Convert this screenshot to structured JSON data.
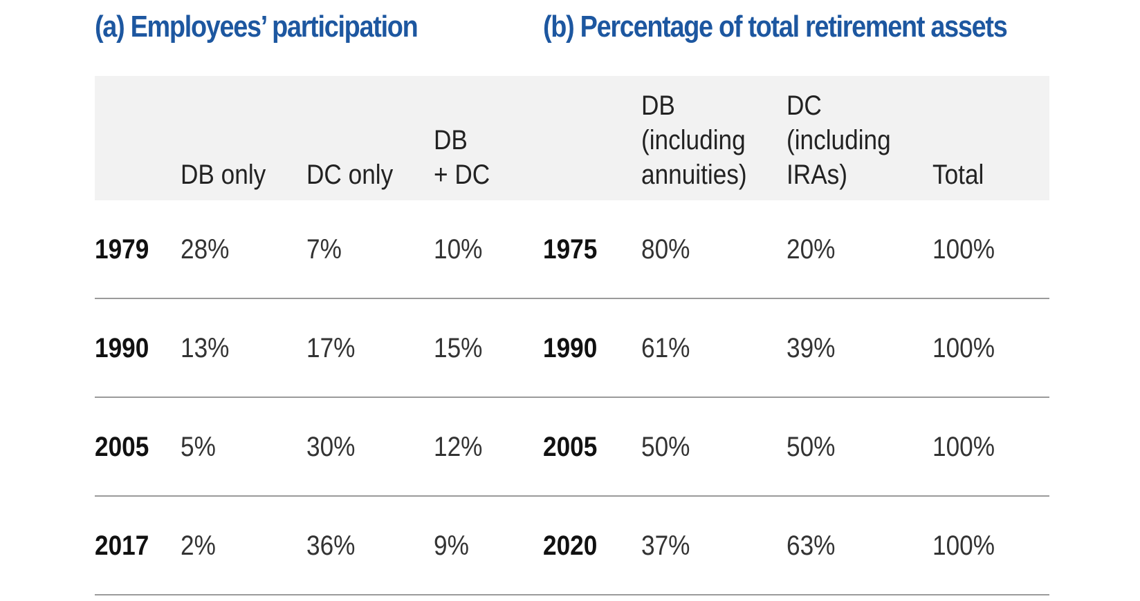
{
  "chart_data": {
    "type": "table",
    "panels": [
      {
        "title": "(a) Employees’ participation",
        "columns": [
          "DB only",
          "DC only",
          "DB\n+ DC"
        ],
        "rows": [
          {
            "year": "1979",
            "values": [
              "28%",
              "7%",
              "10%"
            ]
          },
          {
            "year": "1990",
            "values": [
              "13%",
              "17%",
              "15%"
            ]
          },
          {
            "year": "2005",
            "values": [
              "5%",
              "30%",
              "12%"
            ]
          },
          {
            "year": "2017",
            "values": [
              "2%",
              "36%",
              "9%"
            ]
          }
        ]
      },
      {
        "title": "(b) Percentage of total retirement assets",
        "columns": [
          "DB\n(including\nannuities)",
          "DC\n(including\nIRAs)",
          "Total"
        ],
        "rows": [
          {
            "year": "1975",
            "values": [
              "80%",
              "20%",
              "100%"
            ]
          },
          {
            "year": "1990",
            "values": [
              "61%",
              "39%",
              "100%"
            ]
          },
          {
            "year": "2005",
            "values": [
              "50%",
              "50%",
              "100%"
            ]
          },
          {
            "year": "2020",
            "values": [
              "37%",
              "63%",
              "100%"
            ]
          }
        ]
      }
    ],
    "colors": {
      "title": "#1d57a0",
      "header_background": "#f2f2f2",
      "row_divider": "#9a9a9a"
    }
  }
}
